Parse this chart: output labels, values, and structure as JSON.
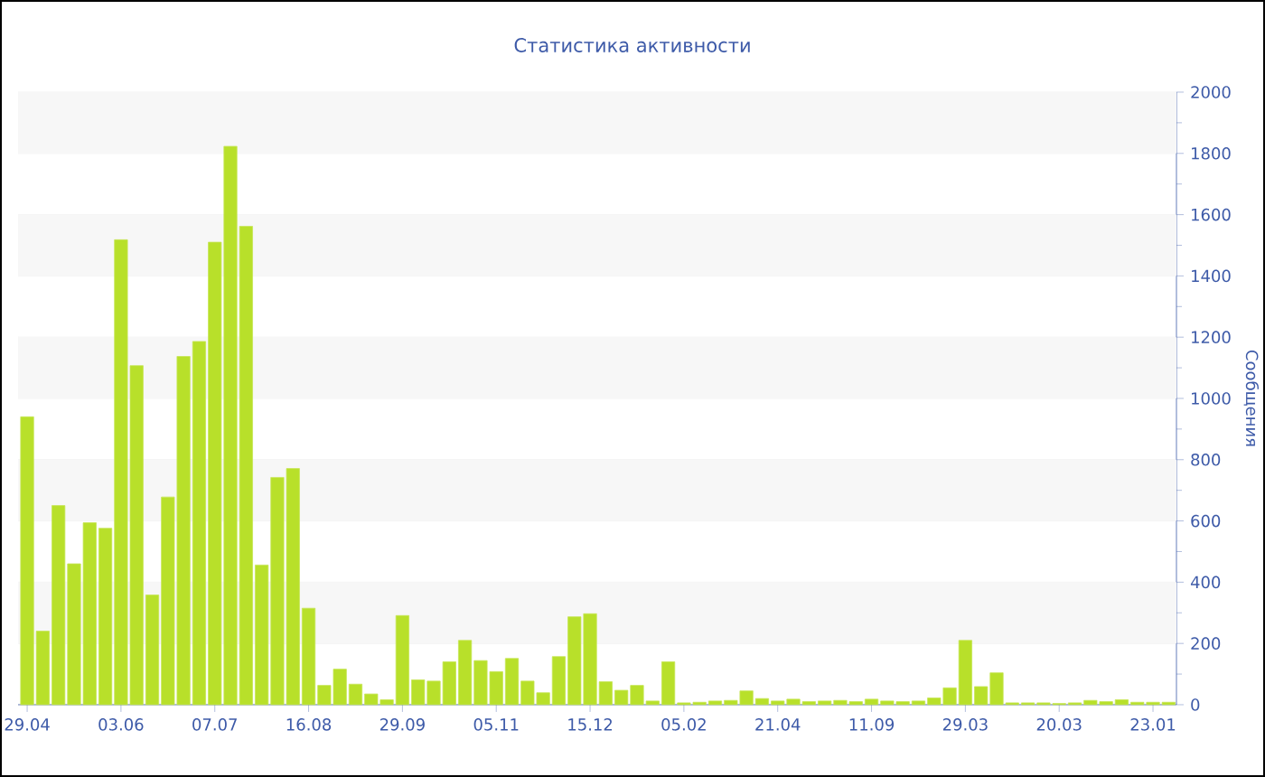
{
  "chart_data": {
    "type": "bar",
    "title": "Статистика активности",
    "ylabel": "Сообщения",
    "categories": [
      "29.04",
      null,
      null,
      null,
      null,
      null,
      "03.06",
      null,
      null,
      null,
      null,
      null,
      "07.07",
      null,
      null,
      null,
      null,
      null,
      "16.08",
      null,
      null,
      null,
      null,
      null,
      "29.09",
      null,
      null,
      null,
      null,
      null,
      "05.11",
      null,
      null,
      null,
      null,
      null,
      "15.12",
      null,
      null,
      null,
      null,
      null,
      "05.02",
      null,
      null,
      null,
      null,
      null,
      "21.04",
      null,
      null,
      null,
      null,
      null,
      "11.09",
      null,
      null,
      null,
      null,
      null,
      "29.03",
      null,
      null,
      null,
      null,
      null,
      "20.03",
      null,
      null,
      null,
      null,
      null,
      "23.01",
      null
    ],
    "values": [
      940,
      240,
      650,
      460,
      594,
      576,
      1518,
      1107,
      358,
      678,
      1137,
      1186,
      1510,
      1823,
      1562,
      456,
      742,
      771,
      315,
      63,
      116,
      67,
      35,
      16,
      291,
      81,
      77,
      140,
      210,
      144,
      108,
      151,
      77,
      39,
      157,
      287,
      297,
      75,
      47,
      63,
      12,
      140,
      6,
      8,
      12,
      14,
      45,
      20,
      12,
      18,
      10,
      12,
      14,
      10,
      18,
      12,
      10,
      12,
      22,
      55,
      210,
      59,
      104,
      6,
      6,
      6,
      4,
      6,
      14,
      10,
      16,
      8,
      8,
      8
    ],
    "color": "#b8e02a",
    "ylim": [
      0,
      2000
    ],
    "yticks": [
      0,
      200,
      400,
      600,
      800,
      1000,
      1200,
      1400,
      1600,
      1800,
      2000
    ],
    "grid": "y"
  }
}
